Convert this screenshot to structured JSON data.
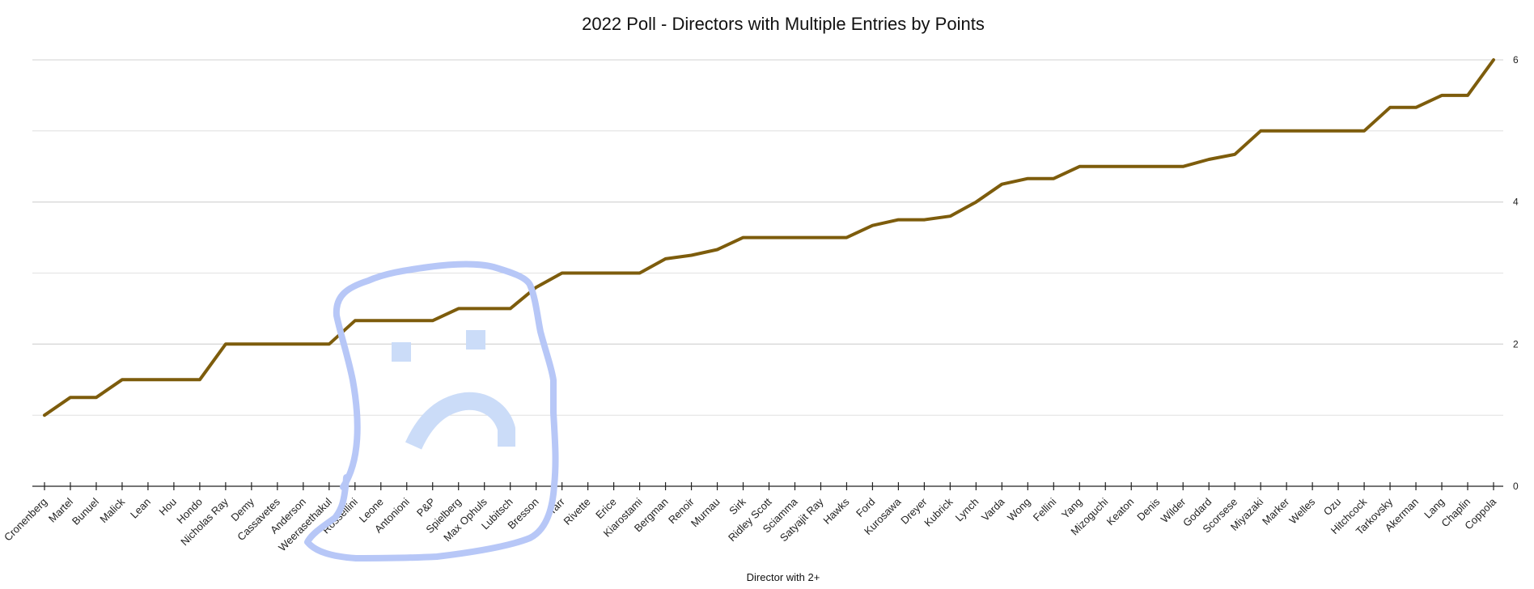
{
  "chart_data": {
    "type": "line",
    "title": "2022 Poll - Directors with Multiple Entries by Points",
    "xlabel": "Director with 2+",
    "ylabel": "",
    "ylim": [
      0,
      6
    ],
    "yticks": [
      0,
      2,
      4,
      6
    ],
    "grid": true,
    "y_axis_side": "right",
    "line_color": "#7d5c0c",
    "grid_color": "#d9d9d9",
    "categories": [
      "Cronenberg",
      "Martel",
      "Bunuel",
      "Malick",
      "Lean",
      "Hou",
      "Hondo",
      "Nicholas Ray",
      "Demy",
      "Cassavetes",
      "Anderson",
      "Weerasethakul",
      "Rossellini",
      "Leone",
      "Antonioni",
      "P&P",
      "Spielberg",
      "Max Ophuls",
      "Lubitsch",
      "Bresson",
      "Tarr",
      "Rivette",
      "Erice",
      "Kiarostami",
      "Bergman",
      "Renoir",
      "Murnau",
      "Sirk",
      "Ridley Scott",
      "Sciamma",
      "Satyajit Ray",
      "Hawks",
      "Ford",
      "Kurosawa",
      "Dreyer",
      "Kubrick",
      "Lynch",
      "Varda",
      "Wong",
      "Fellini",
      "Yang",
      "Mizoguchi",
      "Keaton",
      "Denis",
      "Wilder",
      "Godard",
      "Scorsese",
      "Miyazaki",
      "Marker",
      "Welles",
      "Ozu",
      "Hitchcock",
      "Tarkovsky",
      "Akerman",
      "Lang",
      "Chaplin",
      "Coppola"
    ],
    "series": [
      {
        "values": [
          1,
          1.25,
          1.25,
          1.5,
          1.5,
          1.5,
          1.5,
          2,
          2,
          2,
          2,
          2,
          2.33,
          2.33,
          2.33,
          2.33,
          2.5,
          2.5,
          2.5,
          2.8,
          3,
          3,
          3,
          3,
          3.2,
          3.25,
          3.33,
          3.5,
          3.5,
          3.5,
          3.5,
          3.5,
          3.67,
          3.75,
          3.75,
          3.8,
          4,
          4.25,
          4.33,
          4.33,
          4.5,
          4.5,
          4.5,
          4.5,
          4.5,
          4.6,
          4.67,
          5,
          5,
          5,
          5,
          5,
          5.33,
          5.33,
          5.5,
          5.5,
          6
        ]
      }
    ]
  },
  "annotation": {
    "color": "#b7c7f7",
    "icon": "hand-drawn-sad-face"
  }
}
